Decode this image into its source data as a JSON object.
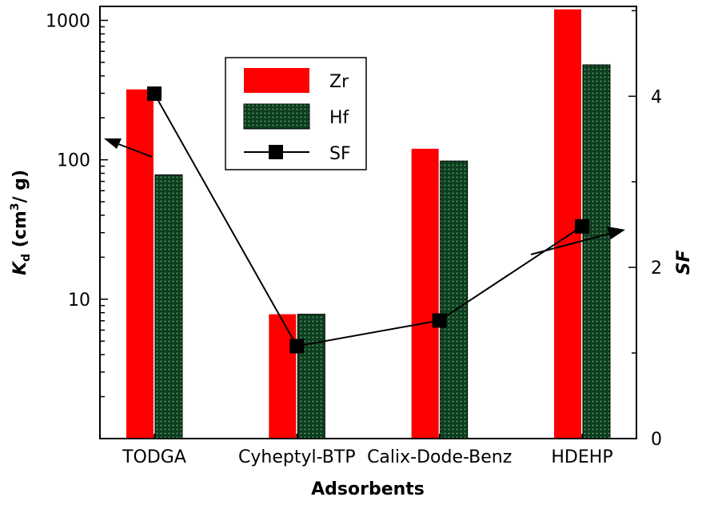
{
  "chart_data": {
    "type": "bar",
    "categories": [
      "TODGA",
      "Cyheptyl-BTP",
      "Calix-Dode-Benz",
      "HDEHP"
    ],
    "series": [
      {
        "name": "Zr",
        "axis": "left",
        "values": [
          320,
          7.8,
          120,
          1200
        ],
        "color": "#ff0000"
      },
      {
        "name": "Hf",
        "axis": "left",
        "values": [
          78,
          7.8,
          98,
          480
        ],
        "color": "#0f3d22",
        "pattern": "dotted"
      },
      {
        "name": "SF",
        "axis": "right",
        "type": "line",
        "values": [
          4.03,
          1.08,
          1.38,
          2.48
        ],
        "color": "#000000"
      }
    ],
    "xlabel": "Adsorbents",
    "ylabel_left": {
      "prefix": "K",
      "subscript": "d",
      "rest1": " (cm",
      "superscript": "3",
      "rest2": "/ g)"
    },
    "ylabel_right": "SF",
    "left_axis": {
      "scale": "log",
      "range": [
        1,
        1260
      ],
      "major_ticks": [
        10,
        100,
        1000
      ],
      "tick_labels": [
        "10",
        "100",
        "1000"
      ]
    },
    "right_axis": {
      "scale": "linear",
      "range": [
        0,
        5.05
      ],
      "major_ticks": [
        0,
        2,
        4
      ],
      "tick_labels": [
        "0",
        "2",
        "4"
      ]
    },
    "legend": {
      "position": "top-center",
      "entries": [
        "Zr",
        "Hf",
        "SF"
      ]
    },
    "annotations": [
      {
        "type": "arrow",
        "meaning": "Zr/Hf bars read on left axis",
        "direction": "left"
      },
      {
        "type": "arrow",
        "meaning": "SF line read on right axis",
        "direction": "right"
      }
    ],
    "grid": false
  }
}
